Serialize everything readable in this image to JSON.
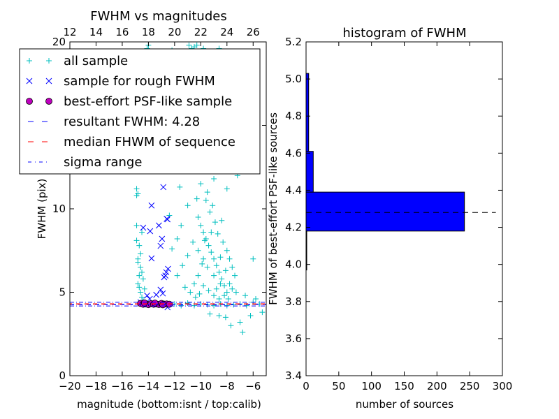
{
  "chart_data": [
    {
      "type": "scatter",
      "title": "FWHM vs magnitudes",
      "xlabel": "magnitude (bottom:isnt / top:calib)",
      "ylabel": "FWHM (pix)",
      "xlim": [
        -20,
        -5
      ],
      "ylim": [
        0,
        20
      ],
      "xticks": [
        "−20",
        "−18",
        "−16",
        "−14",
        "−12",
        "−10",
        "−8",
        "−6"
      ],
      "xtick_values": [
        -20,
        -18,
        -16,
        -14,
        -12,
        -10,
        -8,
        -6
      ],
      "top_xticks": [
        "12",
        "14",
        "16",
        "18",
        "20",
        "22",
        "24",
        "26"
      ],
      "top_xtick_values": [
        12,
        14,
        16,
        18,
        20,
        22,
        24,
        26
      ],
      "top_offset": 32,
      "yticks": [
        "0",
        "5",
        "10",
        "15",
        "20"
      ],
      "ytick_values": [
        0,
        5,
        10,
        15,
        20
      ],
      "legend_position": "upper-left",
      "legend": [
        "all sample",
        "sample for rough FWHM",
        "best-effort PSF-like sample",
        "resultant FWHM: 4.28",
        "median FHWM of sequence",
        "sigma range"
      ],
      "colors": {
        "all": "#00bfbf",
        "rough": "#0000ff",
        "psf": "#bf00bf",
        "resultant": "#0000ff",
        "median": "#ff0000",
        "sigma": "#0000ff"
      },
      "resultant_fwhm": 4.28,
      "median_fwhm": 4.3,
      "sigma_range": [
        4.18,
        4.4
      ],
      "series": {
        "all": [
          [
            -14.9,
            11.2
          ],
          [
            -14.8,
            10.9
          ],
          [
            -14.9,
            8.1
          ],
          [
            -14.7,
            7.8
          ],
          [
            -14.8,
            7.0
          ],
          [
            -14.6,
            6.5
          ],
          [
            -14.7,
            6.0
          ],
          [
            -14.8,
            5.5
          ],
          [
            -14.6,
            5.0
          ],
          [
            -14.5,
            4.7
          ],
          [
            -14.4,
            4.5
          ],
          [
            -14.9,
            9.0
          ],
          [
            -14.5,
            8.6
          ],
          [
            -14.6,
            7.3
          ],
          [
            -14.4,
            5.8
          ],
          [
            -14.3,
            5.2
          ],
          [
            -14.8,
            6.8
          ],
          [
            -14.7,
            5.3
          ],
          [
            -14.5,
            6.2
          ],
          [
            -14.9,
            10.8
          ],
          [
            -12.0,
            4.3
          ],
          [
            -11.5,
            4.2
          ],
          [
            -11.0,
            4.35
          ],
          [
            -10.5,
            4.2
          ],
          [
            -10.0,
            4.3
          ],
          [
            -9.5,
            4.25
          ],
          [
            -9.0,
            4.2
          ],
          [
            -8.5,
            4.3
          ],
          [
            -8.0,
            4.2
          ],
          [
            -7.5,
            4.25
          ],
          [
            -7.0,
            4.3
          ],
          [
            -6.5,
            4.2
          ],
          [
            -6.0,
            4.4
          ],
          [
            -5.5,
            4.3
          ],
          [
            -5.3,
            3.8
          ],
          [
            -6.2,
            3.6
          ],
          [
            -7.0,
            3.2
          ],
          [
            -6.8,
            2.6
          ],
          [
            -7.7,
            3.0
          ],
          [
            -8.1,
            3.5
          ],
          [
            -8.6,
            3.6
          ],
          [
            -9.3,
            3.7
          ],
          [
            -6.0,
            7.0
          ],
          [
            -5.8,
            4.6
          ],
          [
            -6.6,
            4.8
          ],
          [
            -7.3,
            5.0
          ],
          [
            -10.2,
            9.5
          ],
          [
            -10.0,
            9.0
          ],
          [
            -9.8,
            8.6
          ],
          [
            -9.6,
            8.2
          ],
          [
            -9.4,
            7.8
          ],
          [
            -9.2,
            7.4
          ],
          [
            -9.0,
            7.0
          ],
          [
            -8.8,
            6.6
          ],
          [
            -8.6,
            6.2
          ],
          [
            -8.4,
            5.8
          ],
          [
            -8.2,
            5.4
          ],
          [
            -8.0,
            5.0
          ],
          [
            -9.5,
            6.5
          ],
          [
            -9.0,
            6.0
          ],
          [
            -8.5,
            5.5
          ],
          [
            -9.8,
            7.0
          ],
          [
            -10.2,
            6.0
          ],
          [
            -10.5,
            5.5
          ],
          [
            -10.8,
            5.0
          ],
          [
            -9.3,
            9.8
          ],
          [
            -9.1,
            10.2
          ],
          [
            -9.6,
            10.5
          ],
          [
            -8.9,
            9.2
          ],
          [
            -8.7,
            8.5
          ],
          [
            -8.3,
            8.0
          ],
          [
            -8.0,
            7.5
          ],
          [
            -7.8,
            7.0
          ],
          [
            -7.6,
            6.5
          ],
          [
            -7.4,
            6.0
          ],
          [
            -7.8,
            5.5
          ],
          [
            -8.2,
            4.8
          ],
          [
            -8.6,
            4.6
          ],
          [
            -9.0,
            4.8
          ],
          [
            -9.4,
            5.1
          ],
          [
            -9.8,
            5.4
          ],
          [
            -10.2,
            7.5
          ],
          [
            -10.6,
            8.0
          ],
          [
            -11.0,
            7.2
          ],
          [
            -11.4,
            6.6
          ],
          [
            -11.8,
            6.0
          ],
          [
            -11.2,
            5.3
          ],
          [
            -10.4,
            4.7
          ],
          [
            -9.7,
            8.1
          ],
          [
            -9.2,
            8.6
          ],
          [
            -8.5,
            7.1
          ],
          [
            -8.1,
            6.3
          ],
          [
            -8.8,
            5.2
          ],
          [
            -9.9,
            6.7
          ],
          [
            -10.1,
            4.9
          ],
          [
            -7.9,
            4.6
          ],
          [
            -7.6,
            5.2
          ],
          [
            -8.4,
            9.3
          ],
          [
            -9.5,
            11.0
          ],
          [
            -10.3,
            10.6
          ],
          [
            -11.5,
            9.0
          ],
          [
            -11.8,
            8.2
          ],
          [
            -12.2,
            7.6
          ],
          [
            -12.4,
            9.6
          ],
          [
            -11.0,
            10.2
          ],
          [
            -10.0,
            11.5
          ],
          [
            -9.0,
            11.8
          ],
          [
            -8.0,
            11.2
          ],
          [
            -7.2,
            12.0
          ],
          [
            -11.6,
            11.3
          ],
          [
            -12.6,
            12.5
          ],
          [
            -11.8,
            12.8
          ],
          [
            -11.0,
            13.2
          ],
          [
            -10.2,
            13.7
          ],
          [
            -9.2,
            13.1
          ],
          [
            -8.6,
            14.4
          ],
          [
            -10.6,
            14.8
          ],
          [
            -12.0,
            15.0
          ],
          [
            -9.8,
            15.4
          ],
          [
            -8.8,
            16.2
          ],
          [
            -11.2,
            16.5
          ],
          [
            -12.8,
            17.0
          ],
          [
            -10.0,
            17.4
          ],
          [
            -9.4,
            18.0
          ],
          [
            -8.4,
            18.6
          ],
          [
            -11.6,
            18.2
          ],
          [
            -14.0,
            19.8
          ],
          [
            -14.1,
            19.6
          ],
          [
            -12.2,
            19.5
          ],
          [
            -10.9,
            19.8
          ],
          [
            -10.7,
            19.6
          ],
          [
            -10.5,
            19.7
          ],
          [
            -10.3,
            19.8
          ],
          [
            -9.8,
            19.6
          ],
          [
            -8.6,
            19.6
          ],
          [
            -13.5,
            14.2
          ],
          [
            -14.6,
            13.5
          ],
          [
            -13.8,
            16.0
          ],
          [
            -7.6,
            13.5
          ],
          [
            -7.9,
            16.8
          ]
        ],
        "rough": [
          [
            -12.86,
            11.3
          ],
          [
            -13.76,
            10.2
          ],
          [
            -12.54,
            9.37
          ],
          [
            -12.6,
            9.4
          ],
          [
            -14.4,
            8.87
          ],
          [
            -13.2,
            9.0
          ],
          [
            -13.87,
            8.66
          ],
          [
            -12.96,
            8.2
          ],
          [
            -13.07,
            7.78
          ],
          [
            -13.76,
            7.03
          ],
          [
            -12.64,
            6.2
          ],
          [
            -12.8,
            5.9
          ],
          [
            -12.5,
            6.4
          ],
          [
            -12.7,
            6.0
          ],
          [
            -13.07,
            5.15
          ],
          [
            -12.9,
            4.93
          ],
          [
            -14.1,
            4.8
          ],
          [
            -13.4,
            4.85
          ],
          [
            -12.54,
            4.1
          ],
          [
            -14.6,
            4.4
          ],
          [
            -13.9,
            4.6
          ]
        ],
        "psf": [
          [
            -14.6,
            4.33
          ],
          [
            -14.4,
            4.28
          ],
          [
            -14.2,
            4.3
          ],
          [
            -14.0,
            4.26
          ],
          [
            -13.8,
            4.32
          ],
          [
            -13.6,
            4.28
          ],
          [
            -13.4,
            4.3
          ],
          [
            -13.2,
            4.27
          ],
          [
            -13.0,
            4.33
          ],
          [
            -12.8,
            4.29
          ],
          [
            -12.6,
            4.3
          ],
          [
            -12.4,
            4.28
          ],
          [
            -13.5,
            4.35
          ],
          [
            -12.9,
            4.25
          ],
          [
            -14.3,
            4.36
          ]
        ]
      }
    },
    {
      "type": "bar",
      "orientation": "horizontal-histogram",
      "title": "histogram of FWHM",
      "xlabel": "number of sources",
      "ylabel": "FWHM of best-effort PSF-like sources",
      "xlim": [
        0,
        300
      ],
      "ylim": [
        3.4,
        5.2
      ],
      "xticks": [
        "0",
        "50",
        "100",
        "150",
        "200",
        "250",
        "300"
      ],
      "xtick_values": [
        0,
        50,
        100,
        150,
        200,
        250,
        300
      ],
      "yticks": [
        "3.4",
        "3.6",
        "3.8",
        "4.0",
        "4.2",
        "4.4",
        "4.6",
        "4.8",
        "5.0",
        "5.2"
      ],
      "ytick_values": [
        3.4,
        3.6,
        3.8,
        4.0,
        4.2,
        4.4,
        4.6,
        4.8,
        5.0,
        5.2
      ],
      "bins": [
        [
          3.97,
          4.18
        ],
        [
          4.18,
          4.39
        ],
        [
          4.39,
          4.61
        ],
        [
          4.61,
          5.03
        ]
      ],
      "values": [
        1,
        242,
        11,
        4
      ],
      "bar_color": "#0000ff",
      "reference_line": 4.28
    }
  ]
}
